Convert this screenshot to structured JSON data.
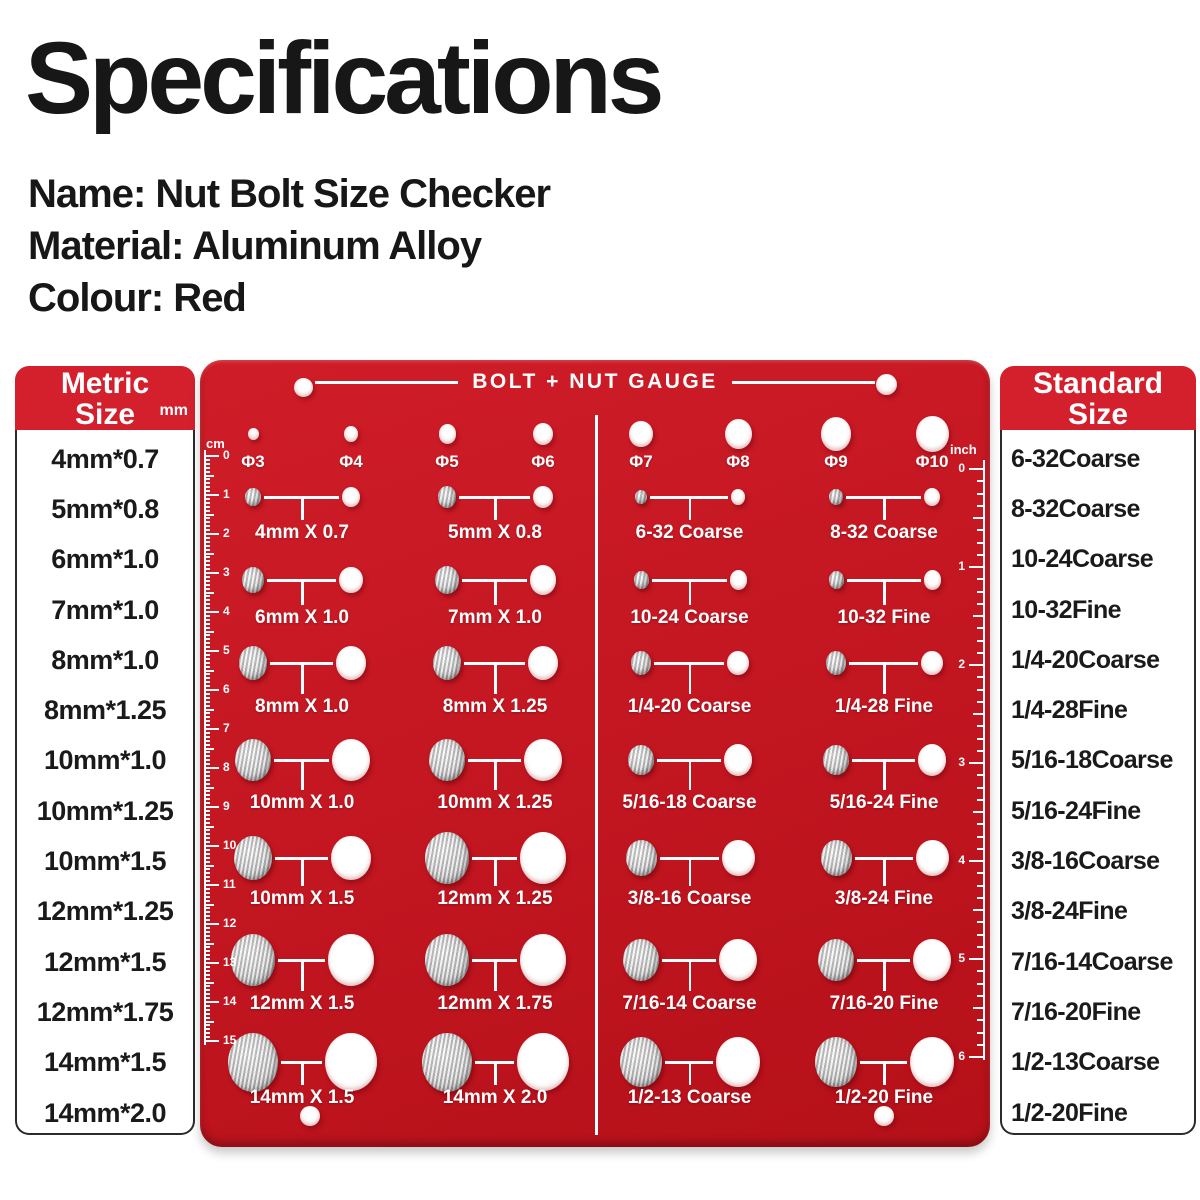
{
  "page": {
    "title": "Specifications",
    "specs": [
      "Name: Nut Bolt Size Checker",
      "Material: Aluminum Alloy",
      "Colour: Red"
    ]
  },
  "metric_panel": {
    "header": [
      "Metric",
      "Size"
    ],
    "unit": "mm",
    "items": [
      "4mm*0.7",
      "5mm*0.8",
      "6mm*1.0",
      "7mm*1.0",
      "8mm*1.0",
      "8mm*1.25",
      "10mm*1.0",
      "10mm*1.25",
      "10mm*1.5",
      "12mm*1.25",
      "12mm*1.5",
      "12mm*1.75",
      "14mm*1.5",
      "14mm*2.0"
    ]
  },
  "standard_panel": {
    "header": [
      "Standard",
      "Size"
    ],
    "items": [
      "6-32Coarse",
      "8-32Coarse",
      "10-24Coarse",
      "10-32Fine",
      "1/4-20Coarse",
      "1/4-28Fine",
      "5/16-18Coarse",
      "5/16-24Fine",
      "3/8-16Coarse",
      "3/8-24Fine",
      "7/16-14Coarse",
      "7/16-20Fine",
      "1/2-13Coarse",
      "1/2-20Fine"
    ]
  },
  "gauge": {
    "title": "BOLT + NUT GAUGE",
    "columns": [
      "Φ3",
      "Φ4",
      "Φ5",
      "Φ6",
      "Φ7",
      "Φ8",
      "Φ9",
      "Φ10"
    ],
    "rows": [
      [
        "4mm X 0.7",
        "5mm X 0.8",
        "6-32 Coarse",
        "8-32 Coarse"
      ],
      [
        "6mm X 1.0",
        "7mm X 1.0",
        "10-24 Coarse",
        "10-32 Fine"
      ],
      [
        "8mm X 1.0",
        "8mm X 1.25",
        "1/4-20 Coarse",
        "1/4-28 Fine"
      ],
      [
        "10mm X 1.0",
        "10mm X 1.25",
        "5/16-18 Coarse",
        "5/16-24 Fine"
      ],
      [
        "10mm X 1.5",
        "12mm X 1.25",
        "3/8-16 Coarse",
        "3/8-24 Fine"
      ],
      [
        "12mm X 1.5",
        "12mm X 1.75",
        "7/16-14 Coarse",
        "7/16-20 Fine"
      ],
      [
        "14mm X 1.5",
        "14mm X 2.0",
        "1/2-13 Coarse",
        "1/2-20 Fine"
      ]
    ],
    "left_ruler": {
      "unit": "cm",
      "numbers": [
        "0",
        "1",
        "2",
        "3",
        "4",
        "5",
        "6",
        "7",
        "8",
        "9",
        "10",
        "11",
        "12",
        "13",
        "14",
        "15"
      ]
    },
    "right_ruler": {
      "unit": "inch",
      "numbers": [
        "0",
        "1",
        "2",
        "3",
        "4",
        "5",
        "6"
      ]
    }
  },
  "colors": {
    "plate_red": "#c41722",
    "header_red": "#d4202c",
    "text_dark": "#171717",
    "hole_white": "#ffffff",
    "stud_silver": "#d3d3d3"
  }
}
